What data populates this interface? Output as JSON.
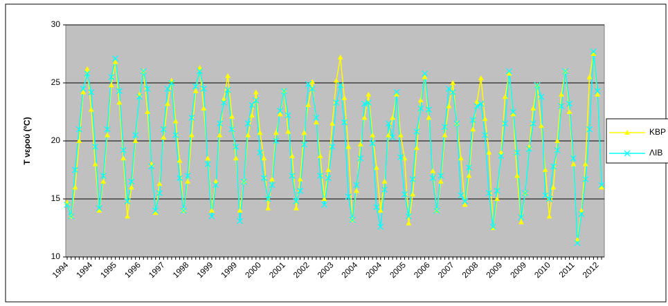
{
  "chart_data": {
    "type": "line",
    "y_label": "T νερού (ºC)",
    "categories": [
      "1994",
      null,
      null,
      null,
      null,
      null,
      "1994",
      null,
      null,
      null,
      null,
      null,
      "1995",
      null,
      null,
      null,
      null,
      null,
      "1996",
      null,
      null,
      null,
      null,
      null,
      "1997",
      null,
      null,
      null,
      null,
      null,
      "1998",
      null,
      null,
      null,
      null,
      null,
      "1999",
      null,
      null,
      null,
      null,
      null,
      "1999",
      null,
      null,
      null,
      null,
      null,
      "2000",
      null,
      null,
      null,
      null,
      null,
      "2001",
      null,
      null,
      null,
      null,
      null,
      "2002",
      null,
      null,
      null,
      null,
      null,
      "2003",
      null,
      null,
      null,
      null,
      null,
      "2004",
      null,
      null,
      null,
      null,
      null,
      "2004",
      null,
      null,
      null,
      null,
      null,
      "2005",
      null,
      null,
      null,
      null,
      null,
      "2006",
      null,
      null,
      null,
      null,
      null,
      "2007",
      null,
      null,
      null,
      null,
      null,
      "2008",
      null,
      null,
      null,
      null,
      null,
      "2009",
      null,
      null,
      null,
      null,
      null,
      "2009",
      null,
      null,
      null,
      null,
      null,
      "2010",
      null,
      null,
      null,
      null,
      null,
      "2011",
      null,
      null,
      null,
      null,
      null,
      "2012",
      null
    ],
    "series": [
      {
        "name": "KBP",
        "color": "#ffff00",
        "marker": "triangle",
        "values": [
          14.7,
          13.5,
          16,
          20,
          24.2,
          26.2,
          22.7,
          18,
          14,
          16.5,
          20.5,
          24.8,
          26.8,
          23.3,
          18.5,
          13.5,
          16,
          20,
          24,
          26,
          22.5,
          18,
          13.8,
          16.3,
          20.3,
          23.2,
          25.2,
          21.7,
          18.3,
          14,
          16.5,
          20.5,
          24.3,
          26.3,
          22.8,
          18.5,
          14,
          16.5,
          20.5,
          23.6,
          25.6,
          22.1,
          18.5,
          14,
          16.5,
          20.5,
          22.2,
          24.2,
          20.7,
          18.5,
          14.2,
          16.7,
          20.7,
          22.3,
          24.3,
          20.8,
          18.7,
          14.2,
          16.7,
          20.7,
          23.1,
          25.1,
          21.6,
          18.7,
          15,
          17.5,
          21.5,
          25.2,
          27.2,
          23.7,
          19.5,
          13.2,
          15.7,
          19.7,
          22,
          24,
          20.5,
          17.7,
          14,
          16.5,
          20.5,
          22,
          24,
          20.5,
          18.5,
          12.9,
          15.4,
          19.4,
          23.5,
          25.5,
          22,
          17.4,
          14,
          16.5,
          20.5,
          23,
          25,
          21.5,
          18.5,
          14.5,
          17,
          21,
          23.4,
          25.4,
          21.9,
          19,
          12.5,
          15,
          19,
          23.8,
          25.8,
          22.3,
          17,
          13,
          15.5,
          19.5,
          22.8,
          24.8,
          21.3,
          17.5,
          13.5,
          16,
          20,
          24,
          26,
          22.5,
          18,
          11.5,
          14,
          18,
          25.5,
          27.5,
          24,
          16
        ]
      },
      {
        "name": "ΛIB",
        "color": "#00ffff",
        "marker": "x",
        "values": [
          14.5,
          13.5,
          17.5,
          21,
          24.5,
          25.8,
          24.2,
          19.5,
          14.2,
          17,
          21,
          25.5,
          27.1,
          24.3,
          19.2,
          14.8,
          16.5,
          20.5,
          23.8,
          26,
          24.5,
          17.8,
          14,
          15.5,
          21,
          24.5,
          25,
          20.5,
          16.8,
          14,
          17,
          22,
          24.7,
          26,
          24.5,
          18,
          13.5,
          16.2,
          21.5,
          23.3,
          24.4,
          21,
          19.5,
          13.1,
          16.5,
          21.5,
          23.1,
          23.5,
          19,
          16.8,
          15,
          16.2,
          20,
          22.6,
          24.3,
          22.2,
          17,
          14.8,
          15.7,
          19.7,
          24.9,
          24.5,
          22,
          17,
          14.5,
          16.8,
          19.5,
          23.3,
          24.8,
          21.6,
          15.2,
          13.2,
          16.2,
          18.5,
          23.2,
          23.3,
          19.8,
          14.3,
          12.6,
          15.8,
          21.5,
          20.3,
          24.2,
          18.6,
          15.4,
          13.5,
          16.7,
          20.8,
          22.8,
          25.8,
          22.7,
          16.8,
          14,
          17,
          21.2,
          24.5,
          24.2,
          21.5,
          15.3,
          14.8,
          17.7,
          21.8,
          23,
          23.2,
          20.5,
          15.5,
          12.6,
          15.7,
          18.7,
          21.5,
          26,
          22.5,
          19,
          13.4,
          15.5,
          19.3,
          21.5,
          24.8,
          23.8,
          15.3,
          15,
          17.8,
          19.2,
          23,
          26,
          23.2,
          18.5,
          11.2,
          13.7,
          16.7,
          21,
          27.7,
          24.3,
          16.2
        ]
      }
    ],
    "ylim": [
      10,
      30
    ],
    "yticks": [
      10,
      15,
      20,
      25,
      30
    ],
    "grid": true,
    "legend": "right"
  }
}
